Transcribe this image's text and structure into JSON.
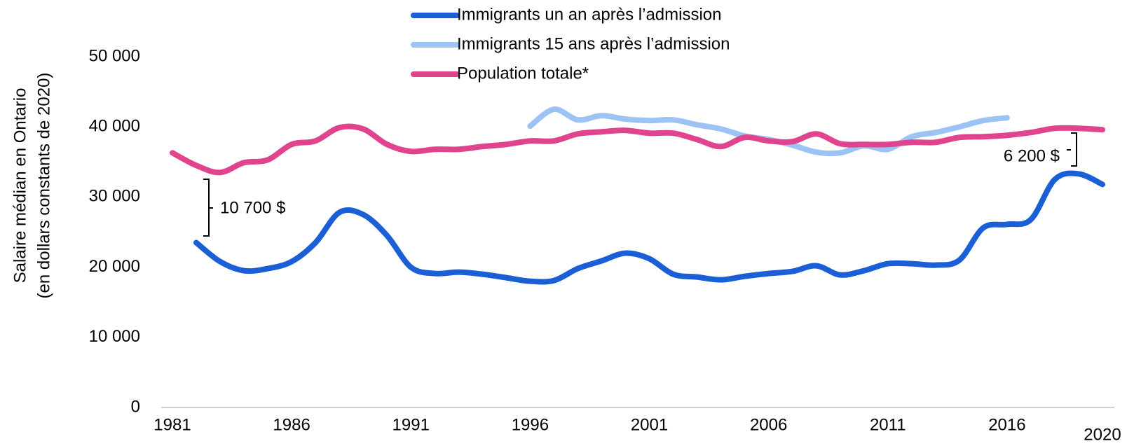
{
  "chart_data": {
    "type": "line",
    "ylabel": [
      "Salaire médian en Ontario",
      "(en dollars constants de 2020)"
    ],
    "x": [
      1981,
      1982,
      1983,
      1984,
      1985,
      1986,
      1987,
      1988,
      1989,
      1990,
      1991,
      1992,
      1993,
      1994,
      1995,
      1996,
      1997,
      1998,
      1999,
      2000,
      2001,
      2002,
      2003,
      2004,
      2005,
      2006,
      2007,
      2008,
      2009,
      2010,
      2011,
      2012,
      2013,
      2014,
      2015,
      2016,
      2017,
      2018,
      2019,
      2020
    ],
    "xlim": [
      1981,
      2020
    ],
    "xticks": [
      1981,
      1986,
      1991,
      1996,
      2001,
      2006,
      2011,
      2016,
      2020
    ],
    "ylim": [
      0,
      50000
    ],
    "yticks": [
      0,
      {
        "value": 10000,
        "label": "10 000"
      },
      {
        "value": 20000,
        "label": "20 000"
      },
      {
        "value": 30000,
        "label": "30 000"
      },
      {
        "value": 40000,
        "label": "40 000"
      },
      {
        "value": 50000,
        "label": "50 000"
      }
    ],
    "legend": "upper center",
    "series": [
      {
        "name": "Immigrants un an après l’admission",
        "color": "#1a5fd6",
        "values": [
          null,
          23500,
          20800,
          19500,
          19800,
          20800,
          23500,
          27800,
          27500,
          24500,
          20000,
          19100,
          19300,
          19000,
          18500,
          18000,
          18100,
          19800,
          20900,
          22000,
          21200,
          19000,
          18600,
          18200,
          18700,
          19100,
          19400,
          20200,
          18900,
          19500,
          20500,
          20500,
          20300,
          21000,
          25600,
          26100,
          26800,
          32500,
          33300,
          31800
        ]
      },
      {
        "name": "Immigrants 15 ans après l’admission",
        "color": "#9dc3f5",
        "values": [
          null,
          null,
          null,
          null,
          null,
          null,
          null,
          null,
          null,
          null,
          null,
          null,
          null,
          null,
          null,
          40100,
          42500,
          41000,
          41600,
          41100,
          40900,
          41000,
          40300,
          39700,
          38700,
          38200,
          37400,
          36400,
          36300,
          37300,
          36800,
          38600,
          39200,
          40000,
          40900,
          41300,
          null,
          null,
          null,
          null
        ]
      },
      {
        "name": "Population totale*",
        "color": "#e0448f",
        "values": [
          36300,
          34500,
          33500,
          34900,
          35300,
          37500,
          38000,
          39900,
          39700,
          37500,
          36500,
          36800,
          36800,
          37200,
          37500,
          38000,
          38000,
          39000,
          39300,
          39500,
          39100,
          39100,
          38200,
          37200,
          38500,
          38000,
          37900,
          39000,
          37600,
          37500,
          37500,
          37800,
          37800,
          38500,
          38600,
          38800,
          39200,
          39800,
          39800,
          39600
        ]
      }
    ],
    "annotations": [
      "10 700 $",
      "6 200 $"
    ]
  }
}
